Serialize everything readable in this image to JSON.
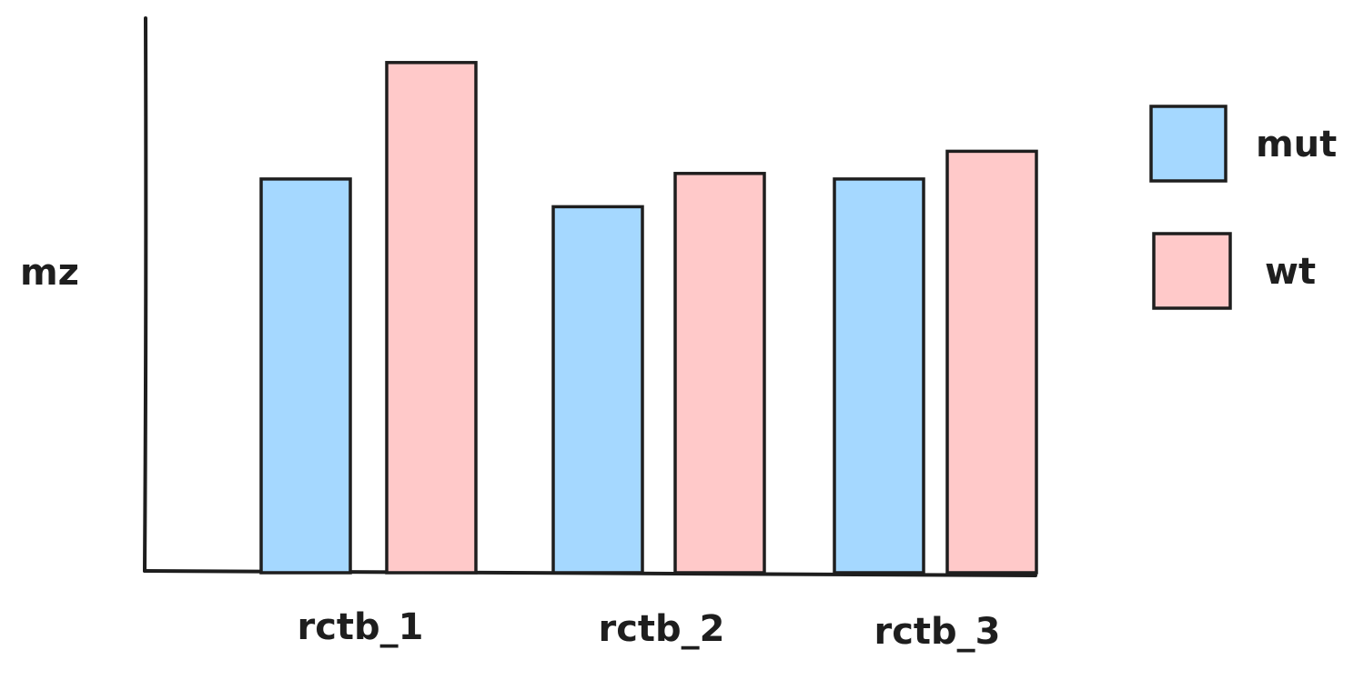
{
  "chart_data": {
    "type": "bar",
    "title": "",
    "xlabel": "",
    "ylabel": "mz",
    "categories": [
      "rctb_1",
      "rctb_2",
      "rctb_3"
    ],
    "series": [
      {
        "name": "mut",
        "values": [
          7.1,
          6.6,
          7.1
        ]
      },
      {
        "name": "wt",
        "values": [
          9.2,
          7.2,
          7.6
        ]
      }
    ],
    "ylim": [
      0,
      10
    ],
    "grid": false,
    "legend_placement": "right",
    "colors": {
      "mut": "#a5d8ff",
      "wt": "#ffc9c9",
      "stroke": "#1e1e1e"
    }
  }
}
